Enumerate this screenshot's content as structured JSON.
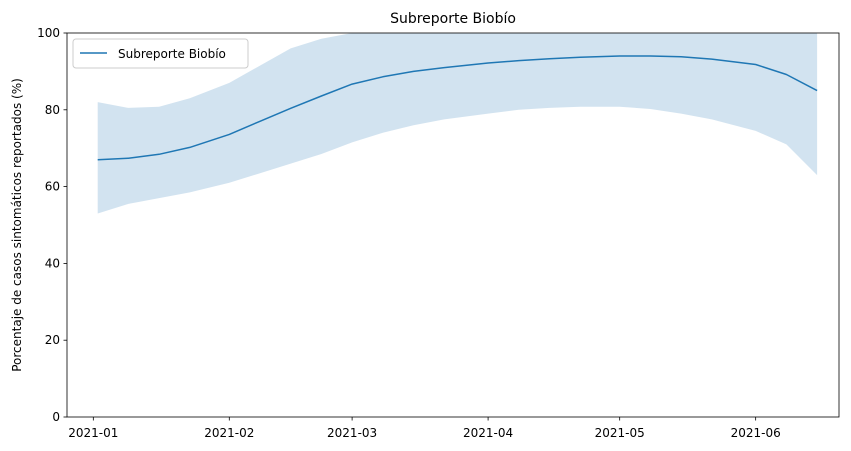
{
  "chart_data": {
    "type": "line",
    "title": "Subreporte Biobío",
    "xlabel": "",
    "ylabel": "Porcentaje de casos sintomáticos reportados (%)",
    "ylim": [
      0,
      100
    ],
    "xlim": [
      "2020-12-26",
      "2021-06-20"
    ],
    "yticks": [
      0,
      20,
      40,
      60,
      80,
      100
    ],
    "xticks": [
      "2021-01",
      "2021-02",
      "2021-03",
      "2021-04",
      "2021-05",
      "2021-06"
    ],
    "grid": false,
    "legend_position": "top-left",
    "series": [
      {
        "name": "Subreporte Biobío",
        "color": "#1f77b4",
        "band_color": "#a6c8e2",
        "x": [
          "2021-01-02",
          "2021-01-09",
          "2021-01-16",
          "2021-01-23",
          "2021-02-01",
          "2021-02-08",
          "2021-02-15",
          "2021-02-22",
          "2021-03-01",
          "2021-03-08",
          "2021-03-15",
          "2021-03-22",
          "2021-04-01",
          "2021-04-08",
          "2021-04-15",
          "2021-04-22",
          "2021-05-01",
          "2021-05-08",
          "2021-05-15",
          "2021-05-22",
          "2021-06-01",
          "2021-06-08",
          "2021-06-15"
        ],
        "values": [
          67.0,
          67.4,
          68.4,
          70.2,
          73.6,
          77.0,
          80.4,
          83.6,
          86.7,
          88.6,
          90.0,
          91.0,
          92.2,
          92.8,
          93.3,
          93.7,
          94.0,
          94.0,
          93.8,
          93.2,
          91.8,
          89.2,
          85.0
        ],
        "lower": [
          53.0,
          55.5,
          57.0,
          58.5,
          61.0,
          63.5,
          66.0,
          68.5,
          71.5,
          74.0,
          76.0,
          77.5,
          79.0,
          80.0,
          80.5,
          80.8,
          80.8,
          80.2,
          79.0,
          77.5,
          74.5,
          71.0,
          63.0
        ],
        "upper": [
          82.0,
          80.5,
          80.8,
          83.0,
          87.0,
          91.5,
          96.0,
          98.5,
          100.0,
          100.0,
          100.0,
          100.0,
          100.0,
          100.0,
          100.0,
          100.0,
          100.0,
          100.0,
          100.0,
          100.0,
          100.0,
          100.0,
          100.0
        ]
      }
    ]
  }
}
